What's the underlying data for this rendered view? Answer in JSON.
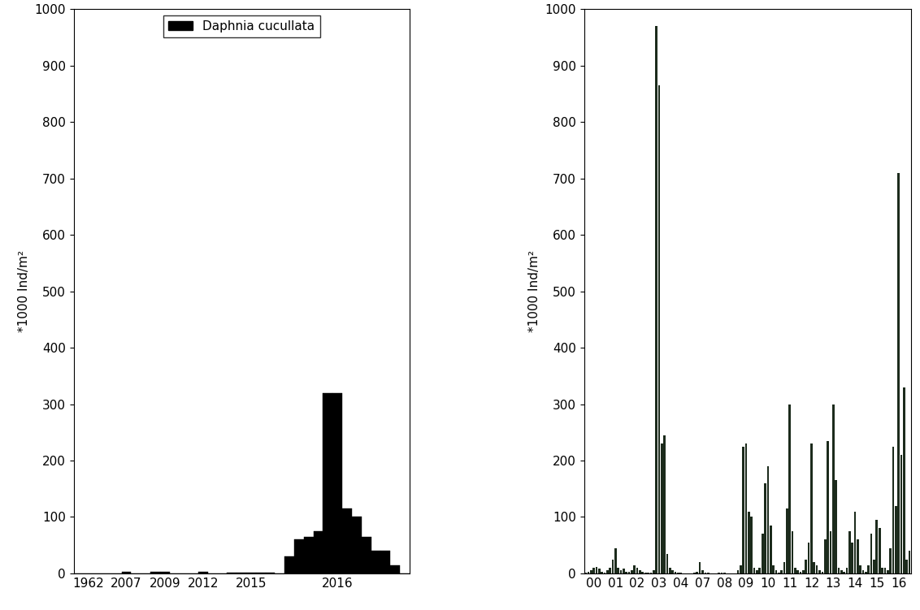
{
  "chart_data": [
    {
      "type": "bar",
      "ylabel": "*1000 Ind/m²",
      "categories": [
        null,
        "1962",
        null,
        null,
        null,
        "2007",
        null,
        null,
        null,
        "2009",
        null,
        null,
        null,
        "2012",
        null,
        null,
        null,
        null,
        "2015",
        null,
        null,
        null,
        null,
        null,
        null,
        null,
        null,
        "2016",
        null,
        null,
        null,
        null,
        null,
        null,
        null
      ],
      "series": [
        {
          "name": "Daphnia cucullata",
          "color": "#000000",
          "values": [
            0,
            0,
            0,
            0,
            0,
            3,
            0,
            0,
            3,
            3,
            0,
            0,
            0,
            3,
            0,
            0,
            2,
            2,
            2,
            2,
            2,
            0,
            30,
            60,
            65,
            75,
            320,
            320,
            115,
            100,
            65,
            40,
            40,
            15,
            0
          ]
        }
      ],
      "ylim": [
        0,
        1000
      ],
      "yticks": [
        0,
        100,
        200,
        300,
        400,
        500,
        600,
        700,
        800,
        900,
        1000
      ],
      "legend": "upper center"
    },
    {
      "type": "bar",
      "ylabel": "*1000 Ind/m²",
      "categories": [
        null,
        null,
        null,
        "00",
        null,
        null,
        null,
        null,
        null,
        null,
        null,
        "01",
        null,
        null,
        null,
        null,
        null,
        null,
        null,
        "02",
        null,
        null,
        null,
        null,
        null,
        null,
        null,
        "03",
        null,
        null,
        null,
        null,
        null,
        null,
        null,
        "04",
        null,
        null,
        null,
        null,
        null,
        null,
        null,
        "07",
        null,
        null,
        null,
        null,
        null,
        null,
        null,
        "08",
        null,
        null,
        null,
        null,
        null,
        null,
        null,
        "09",
        null,
        null,
        null,
        null,
        null,
        null,
        null,
        "10",
        null,
        null,
        null,
        null,
        null,
        null,
        null,
        "11",
        null,
        null,
        null,
        null,
        null,
        null,
        null,
        "12",
        null,
        null,
        null,
        null,
        null,
        null,
        null,
        "13",
        null,
        null,
        null,
        null,
        null,
        null,
        null,
        "14",
        null,
        null,
        null,
        null,
        null,
        null,
        null,
        "15",
        null,
        null,
        null,
        null,
        null,
        null,
        null,
        "16",
        null,
        null,
        null,
        null
      ],
      "values": [
        2,
        3,
        5,
        10,
        12,
        8,
        3,
        2,
        5,
        10,
        25,
        45,
        10,
        5,
        8,
        3,
        3,
        5,
        15,
        10,
        5,
        3,
        2,
        1,
        2,
        5,
        970,
        865,
        230,
        245,
        35,
        10,
        5,
        3,
        2,
        1,
        0,
        0,
        0,
        0,
        2,
        3,
        20,
        5,
        2,
        1,
        0,
        0,
        0,
        1,
        2,
        1,
        0,
        0,
        0,
        0,
        5,
        15,
        225,
        230,
        110,
        100,
        10,
        5,
        10,
        70,
        160,
        190,
        85,
        15,
        5,
        2,
        5,
        20,
        115,
        300,
        75,
        10,
        5,
        3,
        5,
        25,
        55,
        230,
        20,
        15,
        5,
        3,
        60,
        235,
        75,
        300,
        165,
        10,
        5,
        3,
        10,
        75,
        55,
        110,
        60,
        15,
        5,
        3,
        15,
        70,
        25,
        95,
        80,
        10,
        10,
        5,
        45,
        225,
        120,
        710,
        210,
        330,
        25,
        40
      ],
      "color": "#1c2b1c",
      "ylim": [
        0,
        1000
      ],
      "yticks": [
        0,
        100,
        200,
        300,
        400,
        500,
        600,
        700,
        800,
        900,
        1000
      ]
    }
  ]
}
